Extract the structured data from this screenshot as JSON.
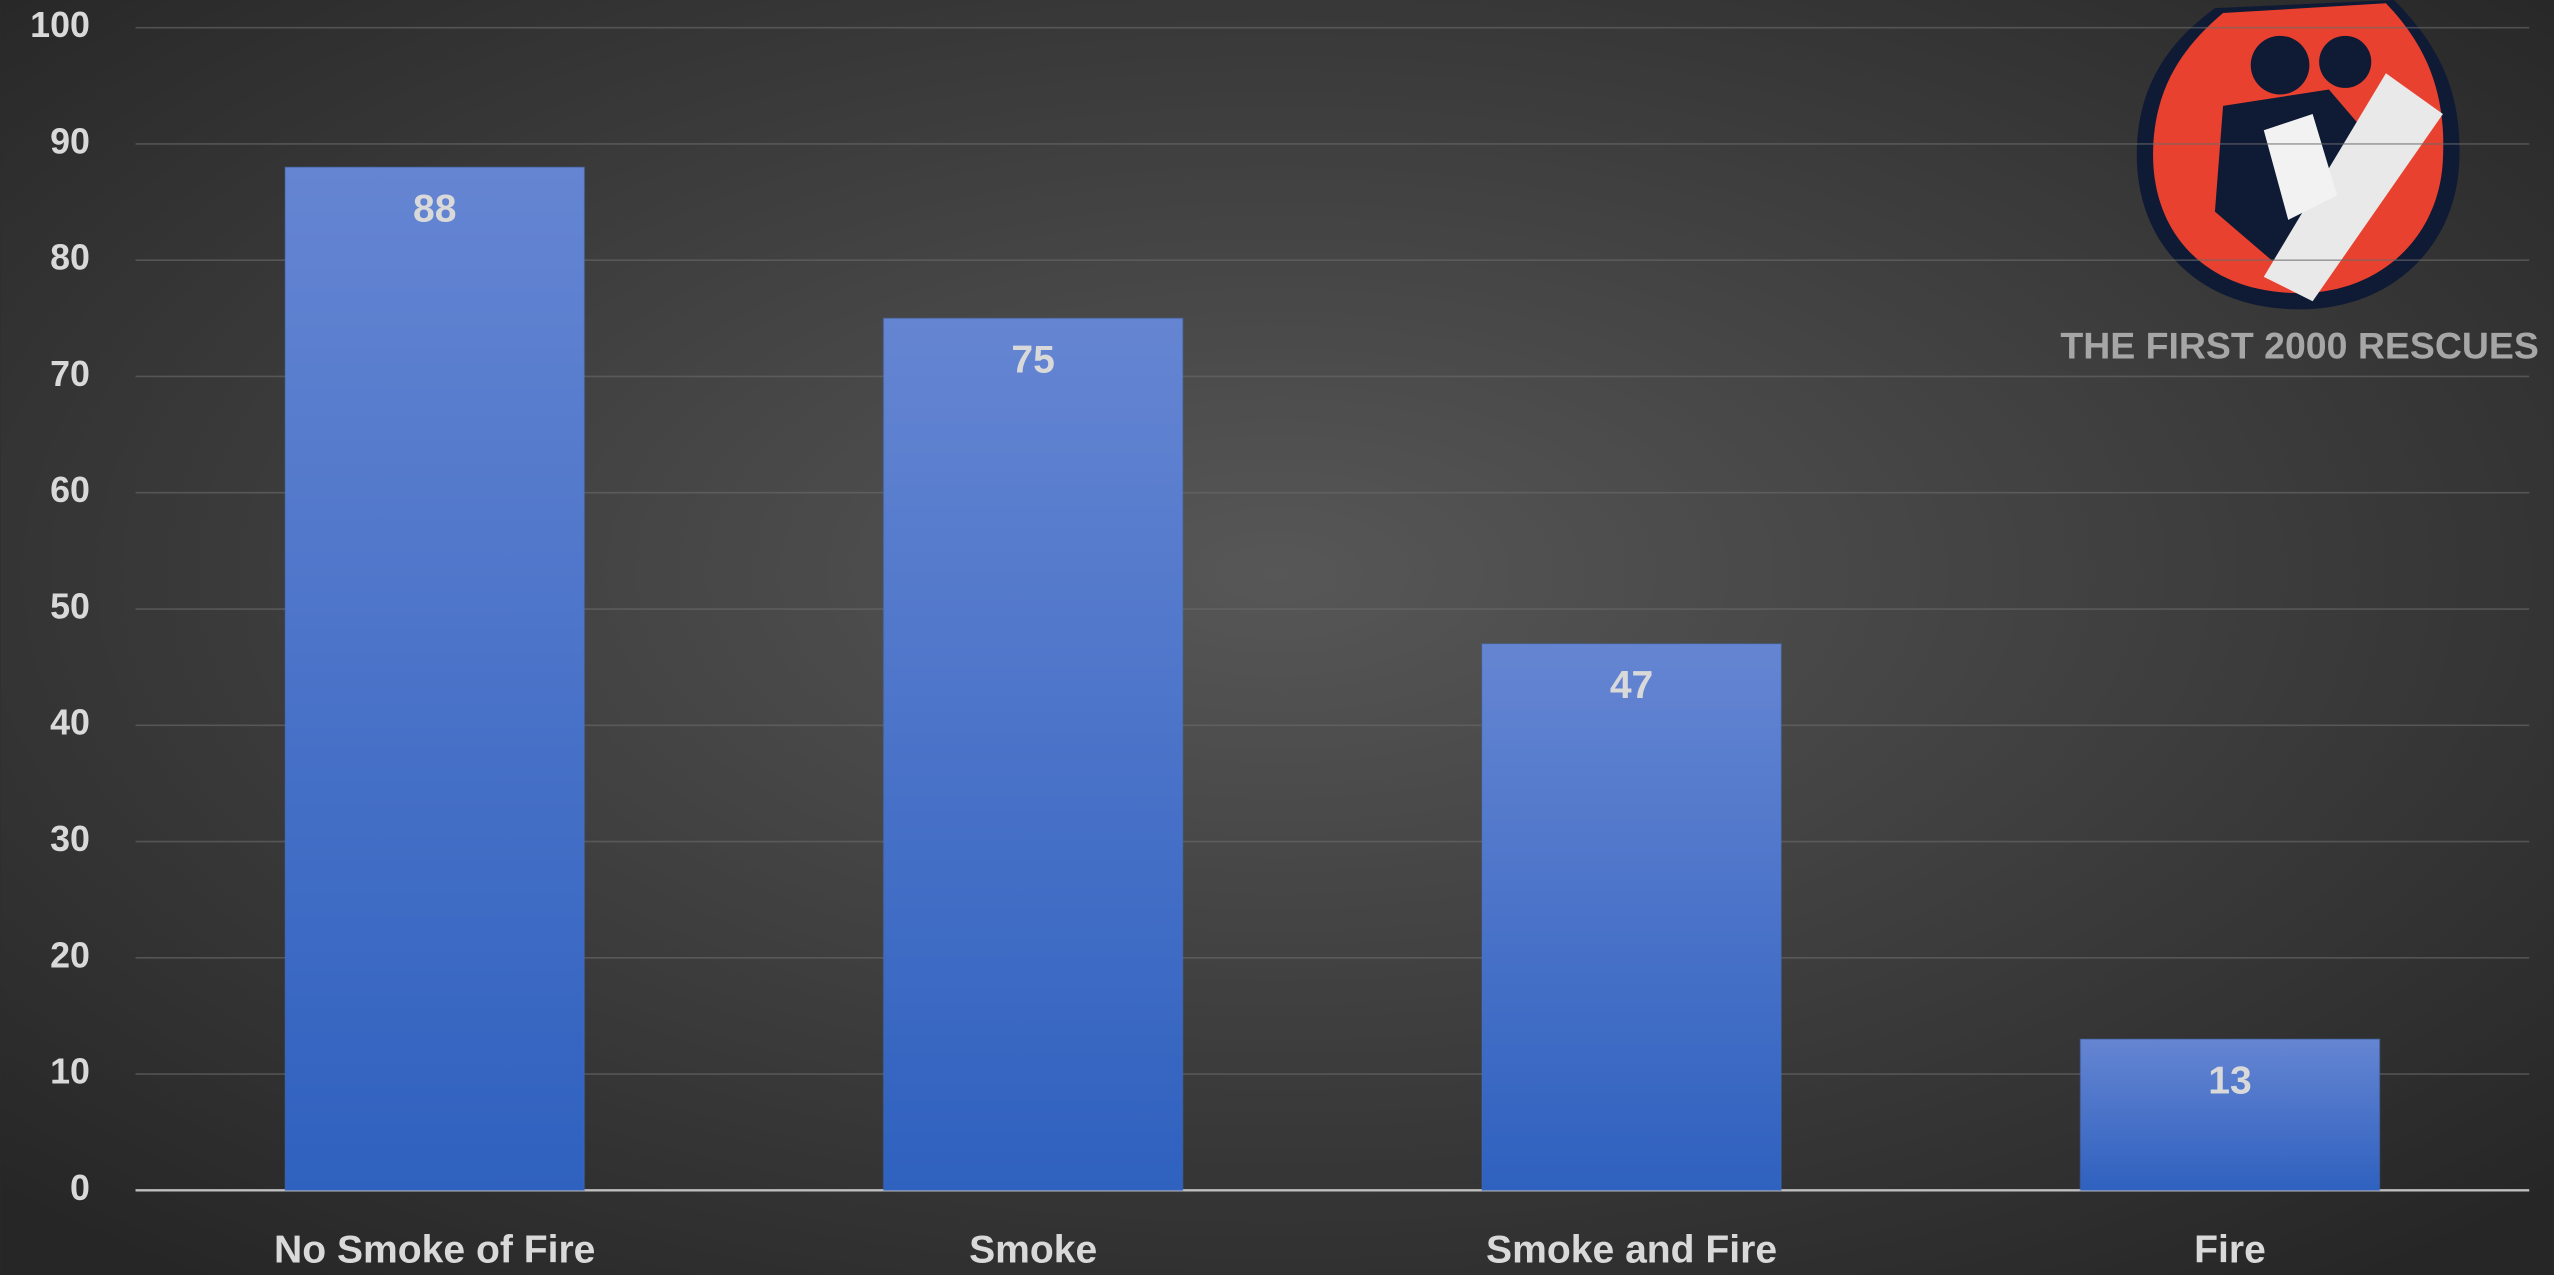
{
  "chart_data": {
    "type": "bar",
    "categories": [
      "No Smoke of Fire",
      "Smoke",
      "Smoke and Fire",
      "Fire"
    ],
    "values": [
      88,
      75,
      47,
      13
    ],
    "color": "#4472c4",
    "ylim": [
      0,
      100
    ],
    "yticks": [
      0,
      10,
      20,
      30,
      40,
      50,
      60,
      70,
      80,
      90,
      100
    ],
    "grid": true,
    "annotation": "THE FIRST 2000 RESCUES"
  }
}
